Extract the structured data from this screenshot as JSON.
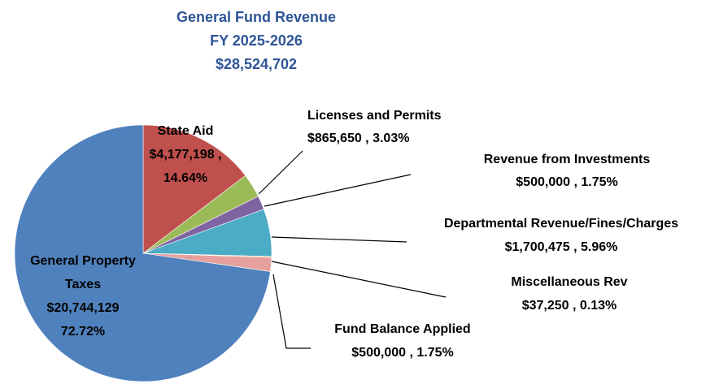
{
  "chart_data": {
    "type": "pie",
    "title": [
      "General Fund Revenue",
      "FY 2025-2026",
      "$28,524,702"
    ],
    "categories": [
      "State Aid",
      "Licenses and Permits",
      "Revenue from Investments",
      "Departmental Revenue/Fines/Charges",
      "Miscellaneous Rev",
      "Fund Balance Applied",
      "General Property Taxes"
    ],
    "values": [
      4177198,
      865650,
      500000,
      1700475,
      37250,
      500000,
      20744129
    ],
    "value_labels": [
      "$4,177,198 ,",
      "$865,650 ,",
      "$500,000 ,",
      "$1,700,475 ,",
      "$37,250 ,",
      "$500,000 ,",
      "$20,744,129"
    ],
    "percents": [
      14.64,
      3.03,
      1.75,
      5.96,
      0.13,
      1.75,
      72.72
    ],
    "percent_labels": [
      "14.64%",
      "3.03%",
      "1.75%",
      "5.96%",
      "0.13%",
      "1.75%",
      "72.72%"
    ],
    "colors": [
      "#c0504d",
      "#9bbb59",
      "#8064a2",
      "#4bacc6",
      "#f79646",
      "#e6a09e",
      "#4f81bd"
    ]
  }
}
